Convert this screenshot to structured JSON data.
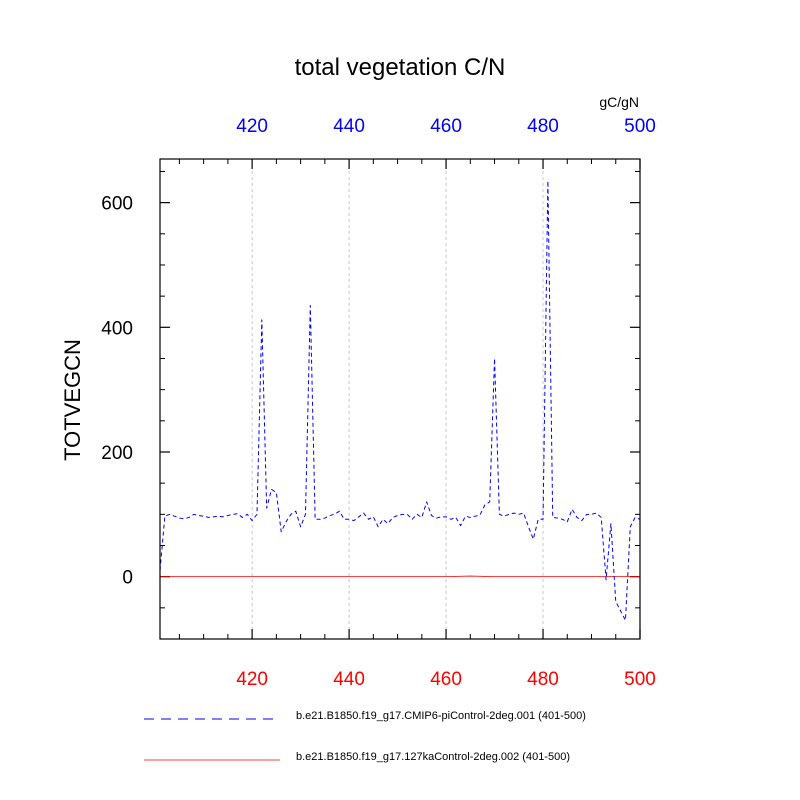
{
  "chart_data": {
    "type": "line",
    "title": "total vegetation C/N",
    "ylabel": "TOTVEGCN",
    "top_axis_units": "gC/gN",
    "xlim": [
      401,
      500
    ],
    "ylim": [
      -100,
      670
    ],
    "xticks": [
      420,
      440,
      460,
      480,
      500
    ],
    "yticks": [
      0,
      200,
      400,
      600
    ],
    "x_minor_step": 5,
    "y_minor_step": 50,
    "grid": "vertical dashed at top-axis ticks",
    "colors": {
      "series_a": "#0000ff",
      "series_b": "#ff0000",
      "top_axis_labels": "#0000ff",
      "bottom_axis_labels": "#ff0000",
      "grid": "#bbbbbb"
    },
    "series": [
      {
        "name": "b.e21.B1850.f19_g17.CMIP6-piControl-2deg.001 (401-500)",
        "axis": "top",
        "style": "dashed",
        "color": "#0000ff",
        "x": [
          401,
          402,
          403,
          404,
          405,
          406,
          407,
          408,
          409,
          410,
          411,
          412,
          413,
          414,
          415,
          416,
          417,
          418,
          419,
          420,
          421,
          422,
          423,
          424,
          425,
          426,
          427,
          428,
          429,
          430,
          431,
          432,
          433,
          434,
          435,
          436,
          437,
          438,
          439,
          440,
          441,
          442,
          443,
          444,
          445,
          446,
          447,
          448,
          449,
          450,
          451,
          452,
          453,
          454,
          455,
          456,
          457,
          458,
          459,
          460,
          461,
          462,
          463,
          464,
          465,
          466,
          467,
          468,
          469,
          470,
          471,
          472,
          473,
          474,
          475,
          476,
          477,
          478,
          479,
          480,
          481,
          482,
          483,
          484,
          485,
          486,
          487,
          488,
          489,
          490,
          491,
          492,
          493,
          494,
          495,
          496,
          497,
          498,
          499,
          500
        ],
        "values": [
          10,
          97,
          100,
          97,
          94,
          93,
          95,
          100,
          98,
          97,
          95,
          96,
          97,
          96,
          98,
          100,
          101,
          95,
          100,
          90,
          100,
          412,
          110,
          140,
          135,
          72,
          88,
          100,
          105,
          80,
          100,
          435,
          92,
          92,
          94,
          98,
          100,
          105,
          92,
          92,
          90,
          96,
          102,
          92,
          96,
          80,
          92,
          85,
          95,
          98,
          100,
          100,
          92,
          100,
          95,
          120,
          98,
          94,
          96,
          96,
          92,
          95,
          82,
          97,
          95,
          97,
          99,
          115,
          120,
          350,
          100,
          97,
          100,
          102,
          100,
          102,
          80,
          60,
          92,
          92,
          635,
          95,
          94,
          92,
          88,
          108,
          95,
          90,
          100,
          100,
          102,
          95,
          -5,
          85,
          -40,
          -55,
          -70,
          80,
          95,
          92
        ]
      },
      {
        "name": "b.e21.B1850.f19_g17.127kaControl-2deg.002 (401-500)",
        "axis": "bottom",
        "style": "solid",
        "color": "#ff0000",
        "x": [
          401,
          410,
          420,
          430,
          440,
          450,
          460,
          465,
          470,
          480,
          490,
          500
        ],
        "values": [
          0,
          0,
          0,
          0,
          0,
          0,
          0,
          1,
          0,
          0,
          0,
          0
        ]
      }
    ]
  }
}
